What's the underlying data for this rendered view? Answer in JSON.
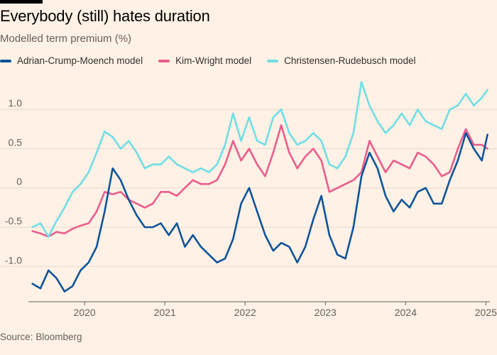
{
  "header": {
    "title": "Everybody (still) hates duration",
    "subtitle": "Modelled term premium (%)"
  },
  "footer": {
    "source": "Source: Bloomberg"
  },
  "colors": {
    "background": "#fff1e5",
    "grid": "#e6d9ce",
    "acm": "#0f5499",
    "kw": "#e95d8c",
    "cr": "#70dee5"
  },
  "chart_data": {
    "type": "line",
    "title": "Everybody (still) hates duration",
    "ylabel": "Modelled term premium (%)",
    "xlabel": "",
    "xlim": [
      2019.3,
      2025.05
    ],
    "ylim": [
      -1.45,
      1.4
    ],
    "y_ticks": [
      1.0,
      0.5,
      0,
      -0.5,
      -1.0
    ],
    "y_tick_labels": [
      "1.0",
      "0.5",
      "0",
      "-0.5",
      "-1.0"
    ],
    "x_ticks": [
      2020,
      2021,
      2022,
      2023,
      2024,
      2025
    ],
    "x_tick_labels": [
      "2020",
      "2021",
      "2022",
      "2023",
      "2024",
      "2025"
    ],
    "legend_position": "top-left",
    "series": [
      {
        "name": "Adrian-Crump-Moench model",
        "color": "#0f5499",
        "x": [
          2019.35,
          2019.45,
          2019.55,
          2019.65,
          2019.75,
          2019.85,
          2019.95,
          2020.05,
          2020.15,
          2020.25,
          2020.35,
          2020.45,
          2020.55,
          2020.65,
          2020.75,
          2020.85,
          2020.95,
          2021.05,
          2021.15,
          2021.25,
          2021.35,
          2021.45,
          2021.55,
          2021.65,
          2021.75,
          2021.85,
          2021.95,
          2022.05,
          2022.15,
          2022.25,
          2022.35,
          2022.45,
          2022.55,
          2022.65,
          2022.75,
          2022.85,
          2022.95,
          2023.05,
          2023.15,
          2023.25,
          2023.35,
          2023.45,
          2023.55,
          2023.65,
          2023.75,
          2023.85,
          2023.95,
          2024.05,
          2024.15,
          2024.25,
          2024.35,
          2024.45,
          2024.55,
          2024.65,
          2024.75,
          2024.85,
          2024.95,
          2025.02
        ],
        "values": [
          -1.22,
          -1.28,
          -1.05,
          -1.15,
          -1.32,
          -1.25,
          -1.05,
          -0.95,
          -0.75,
          -0.3,
          0.25,
          0.1,
          -0.15,
          -0.35,
          -0.5,
          -0.5,
          -0.45,
          -0.6,
          -0.45,
          -0.75,
          -0.6,
          -0.75,
          -0.85,
          -0.95,
          -0.9,
          -0.65,
          -0.2,
          0.0,
          -0.3,
          -0.6,
          -0.8,
          -0.7,
          -0.75,
          -0.95,
          -0.75,
          -0.4,
          -0.1,
          -0.6,
          -0.85,
          -0.9,
          -0.5,
          0.15,
          0.45,
          0.25,
          -0.1,
          -0.3,
          -0.15,
          -0.25,
          -0.05,
          0.0,
          -0.2,
          -0.2,
          0.1,
          0.35,
          0.7,
          0.5,
          0.35,
          0.68
        ]
      },
      {
        "name": "Kim-Wright model",
        "color": "#e95d8c",
        "x": [
          2019.35,
          2019.45,
          2019.55,
          2019.65,
          2019.75,
          2019.85,
          2019.95,
          2020.05,
          2020.15,
          2020.25,
          2020.35,
          2020.45,
          2020.55,
          2020.65,
          2020.75,
          2020.85,
          2020.95,
          2021.05,
          2021.15,
          2021.25,
          2021.35,
          2021.45,
          2021.55,
          2021.65,
          2021.75,
          2021.85,
          2021.95,
          2022.05,
          2022.15,
          2022.25,
          2022.35,
          2022.45,
          2022.55,
          2022.65,
          2022.75,
          2022.85,
          2022.95,
          2023.05,
          2023.15,
          2023.25,
          2023.35,
          2023.45,
          2023.55,
          2023.65,
          2023.75,
          2023.85,
          2023.95,
          2024.05,
          2024.15,
          2024.25,
          2024.35,
          2024.45,
          2024.55,
          2024.65,
          2024.75,
          2024.85,
          2024.95,
          2025.02
        ],
        "values": [
          -0.55,
          -0.58,
          -0.62,
          -0.56,
          -0.58,
          -0.52,
          -0.48,
          -0.45,
          -0.3,
          -0.05,
          -0.08,
          -0.05,
          -0.15,
          -0.2,
          -0.25,
          -0.2,
          -0.05,
          -0.05,
          -0.1,
          -0.0,
          0.1,
          0.05,
          0.05,
          0.1,
          0.3,
          0.6,
          0.35,
          0.5,
          0.3,
          0.15,
          0.45,
          0.8,
          0.45,
          0.25,
          0.4,
          0.5,
          0.35,
          -0.05,
          0.0,
          0.05,
          0.1,
          0.2,
          0.6,
          0.4,
          0.2,
          0.35,
          0.3,
          0.25,
          0.45,
          0.4,
          0.3,
          0.15,
          0.2,
          0.5,
          0.75,
          0.55,
          0.55,
          0.5
        ]
      },
      {
        "name": "Christensen-Rudebusch model",
        "color": "#70dee5",
        "x": [
          2019.35,
          2019.45,
          2019.55,
          2019.65,
          2019.75,
          2019.85,
          2019.95,
          2020.05,
          2020.15,
          2020.25,
          2020.35,
          2020.45,
          2020.55,
          2020.65,
          2020.75,
          2020.85,
          2020.95,
          2021.05,
          2021.15,
          2021.25,
          2021.35,
          2021.45,
          2021.55,
          2021.65,
          2021.75,
          2021.85,
          2021.95,
          2022.05,
          2022.15,
          2022.25,
          2022.35,
          2022.45,
          2022.55,
          2022.65,
          2022.75,
          2022.85,
          2022.95,
          2023.05,
          2023.15,
          2023.25,
          2023.35,
          2023.45,
          2023.55,
          2023.65,
          2023.75,
          2023.85,
          2023.95,
          2024.05,
          2024.15,
          2024.25,
          2024.35,
          2024.45,
          2024.55,
          2024.65,
          2024.75,
          2024.85,
          2024.95,
          2025.02
        ],
        "values": [
          -0.5,
          -0.45,
          -0.62,
          -0.42,
          -0.25,
          -0.05,
          0.05,
          0.2,
          0.45,
          0.72,
          0.65,
          0.5,
          0.6,
          0.45,
          0.25,
          0.3,
          0.3,
          0.4,
          0.3,
          0.25,
          0.2,
          0.25,
          0.2,
          0.3,
          0.55,
          0.95,
          0.6,
          0.9,
          0.6,
          0.55,
          0.9,
          1.0,
          0.7,
          0.55,
          0.6,
          0.7,
          0.6,
          0.3,
          0.25,
          0.4,
          0.7,
          1.35,
          1.05,
          0.85,
          0.7,
          0.8,
          0.95,
          0.8,
          1.0,
          0.85,
          0.8,
          0.75,
          1.0,
          1.05,
          1.2,
          1.05,
          1.15,
          1.25
        ]
      }
    ]
  }
}
